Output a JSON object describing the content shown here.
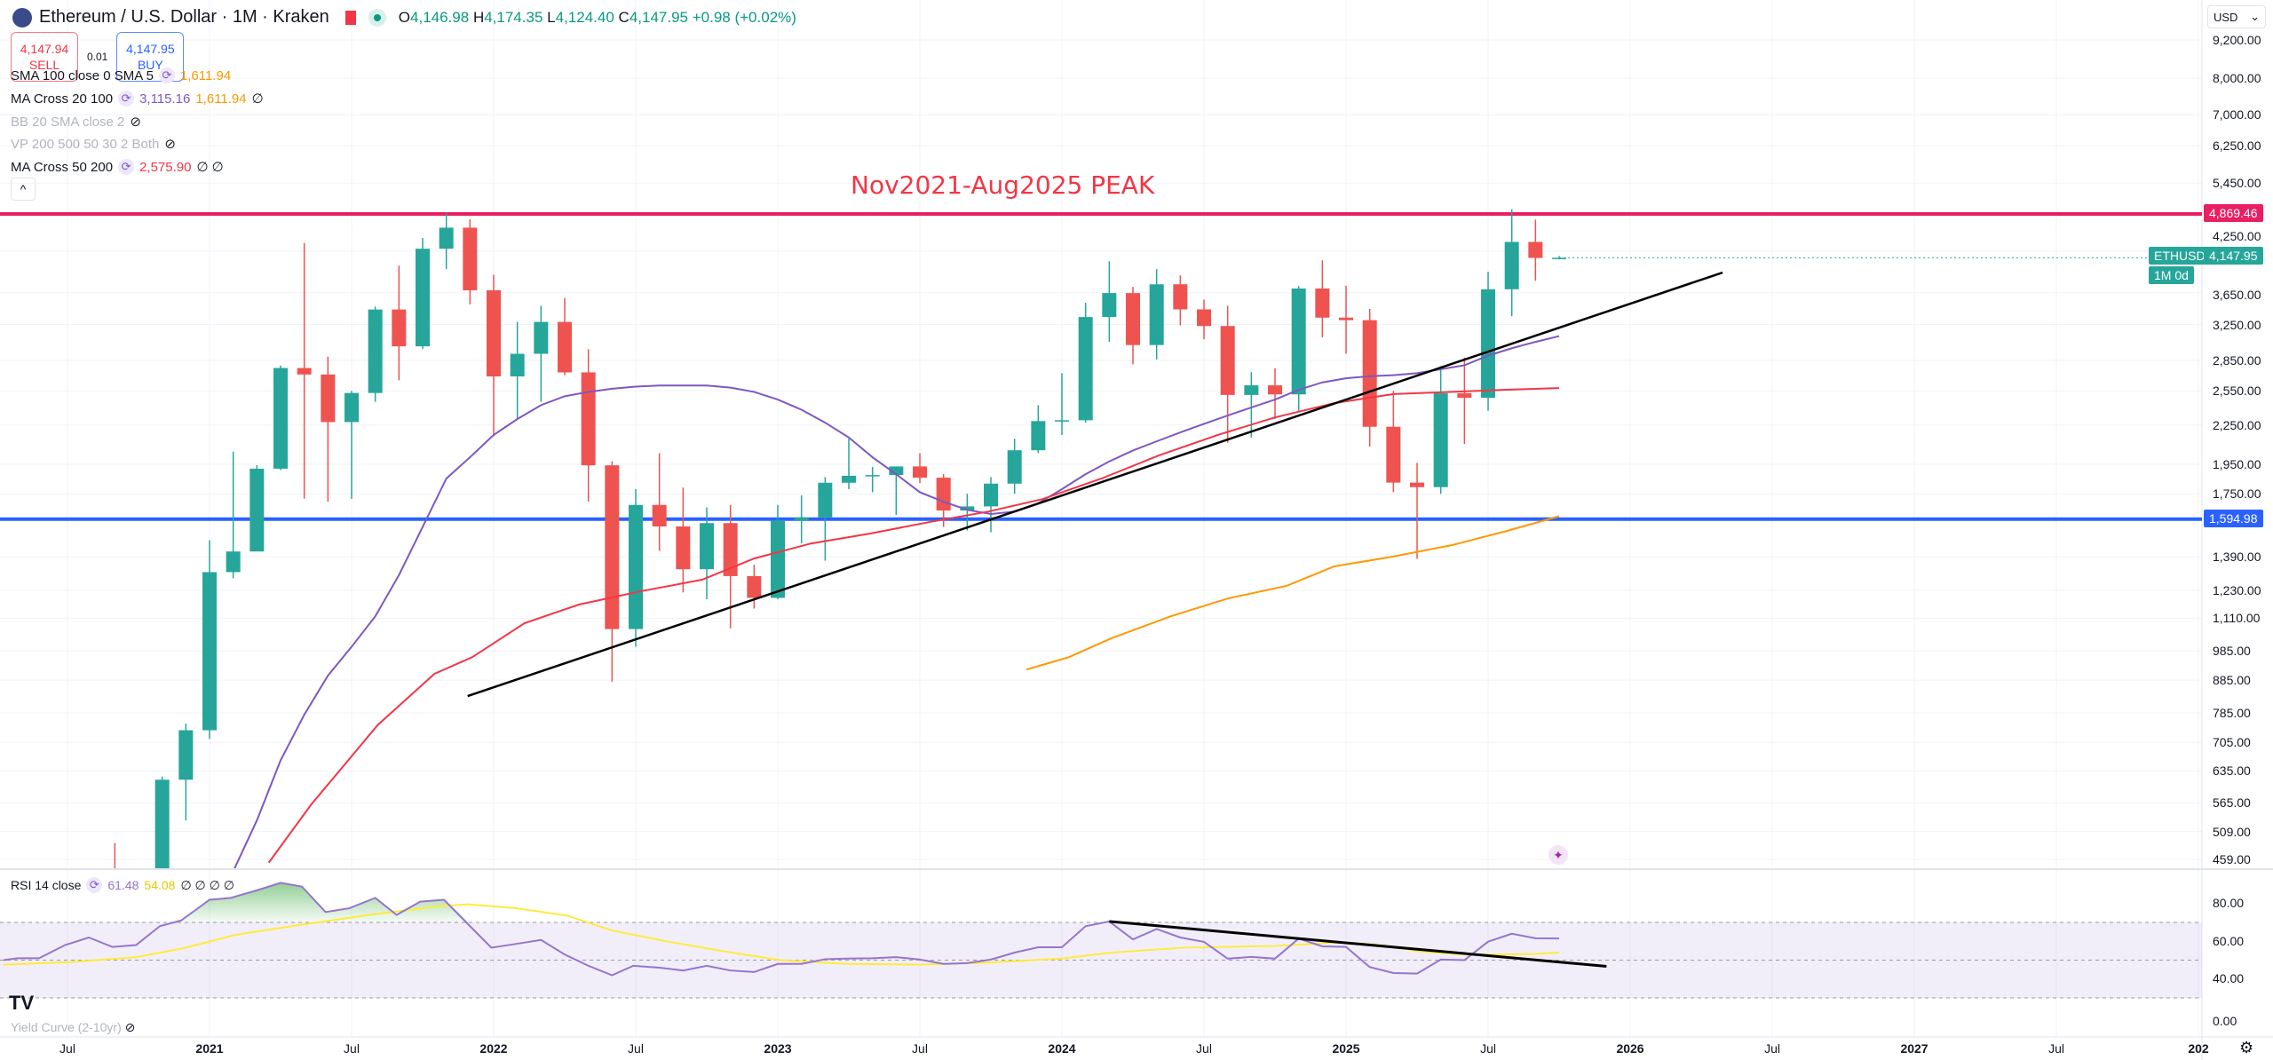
{
  "header": {
    "title": "Ethereum / U.S. Dollar · 1M · Kraken",
    "o_label": "O",
    "o": "4,146.98",
    "h_label": "H",
    "h": "4,174.35",
    "l_label": "L",
    "l": "4,124.40",
    "c_label": "C",
    "c": "4,147.95",
    "change": "+0.98 (+0.02%)"
  },
  "trade": {
    "sell_price": "4,147.94",
    "sell_label": "SELL",
    "spread": "0.01",
    "buy_price": "4,147.95",
    "buy_label": "BUY"
  },
  "indicators": [
    {
      "name": "SMA 100 close 0 SMA 5",
      "v1": "1,611.94",
      "v2": "",
      "extra": ""
    },
    {
      "name": "MA Cross 20 100",
      "v1": "3,115.16",
      "v2": "1,611.94",
      "extra": "∅"
    },
    {
      "name": "BB 20 SMA close 2",
      "v1": "",
      "v2": "",
      "extra": "⊘"
    },
    {
      "name": "VP 200 500 50 30 2 Both",
      "v1": "",
      "v2": "",
      "extra": "⊘"
    },
    {
      "name": "MA Cross 50 200",
      "v1": "2,575.90",
      "v2": "",
      "extra": "∅ ∅"
    }
  ],
  "rsi_header": {
    "name": "RSI 14 close",
    "rsi": "61.48",
    "signal": "54.08",
    "extra": "∅ ∅ ∅ ∅"
  },
  "yield_curve": "Yield Curve (2-10yr)",
  "currency": "USD",
  "symbol_tag": "ETHUSD",
  "price_tag": "4,147.95",
  "countdown": "1M 0d",
  "colors": {
    "up": "#26a69a",
    "down": "#ef5350",
    "ma20": "#7e57c2",
    "ma50": "#f23645",
    "sma100": "#ff9800",
    "rsi": "#9575cd",
    "rsi_signal": "#ffeb3b",
    "peak_line": "#e91e63",
    "support_line": "#2962ff"
  },
  "chart_data": {
    "type": "candlestick",
    "title": "Ethereum / U.S. Dollar · 1M · Kraken",
    "scale": "log",
    "annotation": "Nov2021-Aug2025 PEAK",
    "hlines": [
      {
        "price": 4869.46,
        "label": "4,869.46",
        "color": "#e91e63"
      },
      {
        "price": 1594.98,
        "label": "1,594.98",
        "color": "#2962ff"
      }
    ],
    "trendline": {
      "from_month": 10.9,
      "from_price": 835,
      "to_month": 63.9,
      "to_price": 3930
    },
    "month_index_origin": "2021-01",
    "price_ticks": [
      "9,200.00",
      "8,000.00",
      "7,000.00",
      "6,250.00",
      "5,450.00",
      "4,250.00",
      "3,650.00",
      "3,250.00",
      "2,850.00",
      "2,550.00",
      "2,250.00",
      "1,950.00",
      "1,750.00",
      "1,390.00",
      "1,230.00",
      "1,110.00",
      "985.00",
      "885.00",
      "785.00",
      "705.00",
      "635.00",
      "565.00",
      "509.00",
      "459.00"
    ],
    "time_ticks": [
      {
        "m": -6,
        "label": "Jul"
      },
      {
        "m": 0,
        "label": "2021"
      },
      {
        "m": 6,
        "label": "Jul"
      },
      {
        "m": 12,
        "label": "2022"
      },
      {
        "m": 18,
        "label": "Jul"
      },
      {
        "m": 24,
        "label": "2023"
      },
      {
        "m": 30,
        "label": "Jul"
      },
      {
        "m": 36,
        "label": "2024"
      },
      {
        "m": 42,
        "label": "Jul"
      },
      {
        "m": 48,
        "label": "2025"
      },
      {
        "m": 54,
        "label": "Jul"
      },
      {
        "m": 60,
        "label": "2026"
      },
      {
        "m": 66,
        "label": "Jul"
      },
      {
        "m": 72,
        "label": "2027"
      },
      {
        "m": 78,
        "label": "Jul"
      },
      {
        "m": 84,
        "label": "202"
      }
    ],
    "candles": [
      [
        -4,
        434,
        488,
        308,
        360
      ],
      [
        -3,
        360,
        415,
        335,
        386
      ],
      [
        -2,
        386,
        622,
        373,
        615
      ],
      [
        -1,
        615,
        755,
        530,
        737
      ],
      [
        0,
        737,
        1476,
        714,
        1314
      ],
      [
        1,
        1314,
        2041,
        1285,
        1417
      ],
      [
        2,
        1417,
        1943,
        1460,
        1918
      ],
      [
        3,
        1918,
        2797,
        1908,
        2772
      ],
      [
        4,
        2772,
        4380,
        1719,
        2707
      ],
      [
        5,
        2707,
        2890,
        1700,
        2275
      ],
      [
        6,
        2275,
        2550,
        1718,
        2530
      ],
      [
        7,
        2530,
        3470,
        2450,
        3433
      ],
      [
        8,
        3433,
        4030,
        2650,
        3001
      ],
      [
        9,
        3001,
        4460,
        2970,
        4288
      ],
      [
        10,
        4288,
        4891,
        3980,
        4631
      ],
      [
        11,
        4631,
        4778,
        3500,
        3683
      ],
      [
        12,
        3683,
        3900,
        2160,
        2688
      ],
      [
        13,
        2688,
        3280,
        2300,
        2920
      ],
      [
        14,
        2920,
        3480,
        2450,
        3281
      ],
      [
        15,
        3281,
        3580,
        2700,
        2728
      ],
      [
        16,
        2728,
        2970,
        1700,
        1942
      ],
      [
        17,
        1942,
        1970,
        880,
        1067
      ],
      [
        18,
        1067,
        1780,
        1000,
        1680
      ],
      [
        19,
        1680,
        2030,
        1420,
        1553
      ],
      [
        20,
        1553,
        1790,
        1220,
        1328
      ],
      [
        21,
        1328,
        1665,
        1190,
        1572
      ],
      [
        22,
        1572,
        1680,
        1070,
        1295
      ],
      [
        23,
        1295,
        1350,
        1150,
        1196
      ],
      [
        24,
        1196,
        1680,
        1190,
        1585
      ],
      [
        25,
        1585,
        1740,
        1460,
        1605
      ],
      [
        26,
        1605,
        1860,
        1370,
        1822
      ],
      [
        27,
        1822,
        2140,
        1780,
        1869
      ],
      [
        28,
        1869,
        1930,
        1760,
        1874
      ],
      [
        29,
        1874,
        1930,
        1620,
        1934
      ],
      [
        30,
        1934,
        2030,
        1820,
        1856
      ],
      [
        31,
        1856,
        1880,
        1550,
        1646
      ],
      [
        32,
        1646,
        1750,
        1530,
        1671
      ],
      [
        33,
        1671,
        1860,
        1520,
        1816
      ],
      [
        34,
        1816,
        2140,
        1750,
        2052
      ],
      [
        35,
        2052,
        2420,
        2030,
        2283
      ],
      [
        36,
        2283,
        2720,
        2170,
        2290
      ],
      [
        37,
        2290,
        3520,
        2270,
        3340
      ],
      [
        38,
        3340,
        4095,
        3050,
        3646
      ],
      [
        39,
        3646,
        3730,
        2810,
        3015
      ],
      [
        40,
        3015,
        3980,
        2860,
        3765
      ],
      [
        41,
        3765,
        3890,
        3240,
        3435
      ],
      [
        42,
        3435,
        3560,
        3080,
        3232
      ],
      [
        43,
        3232,
        3480,
        2110,
        2512
      ],
      [
        44,
        2512,
        2730,
        2150,
        2602
      ],
      [
        45,
        2602,
        2770,
        2300,
        2517
      ],
      [
        46,
        2517,
        3740,
        2360,
        3707
      ],
      [
        47,
        3707,
        4110,
        3100,
        3333
      ],
      [
        48,
        3333,
        3745,
        2920,
        3302
      ],
      [
        49,
        3302,
        3440,
        2080,
        2236
      ],
      [
        50,
        2236,
        2550,
        1760,
        1823
      ],
      [
        51,
        1823,
        1960,
        1380,
        1793
      ],
      [
        52,
        1793,
        2790,
        1750,
        2528
      ],
      [
        53,
        2528,
        2880,
        2100,
        2486
      ],
      [
        54,
        2486,
        3940,
        2370,
        3697
      ],
      [
        55,
        3697,
        4956,
        3350,
        4396
      ],
      [
        56,
        4396,
        4770,
        3815,
        4146
      ],
      [
        57,
        4146.98,
        4174.35,
        4124.4,
        4147.95
      ]
    ],
    "ma20": [
      [
        1,
        440
      ],
      [
        2,
        530
      ],
      [
        3,
        660
      ],
      [
        4,
        780
      ],
      [
        5,
        900
      ],
      [
        6,
        1000
      ],
      [
        7,
        1118
      ],
      [
        8,
        1300
      ],
      [
        9,
        1550
      ],
      [
        10,
        1850
      ],
      [
        11,
        2000
      ],
      [
        12,
        2170
      ],
      [
        13,
        2300
      ],
      [
        14,
        2420
      ],
      [
        15,
        2500
      ],
      [
        16,
        2540
      ],
      [
        17,
        2570
      ],
      [
        18,
        2590
      ],
      [
        19,
        2600
      ],
      [
        20,
        2600
      ],
      [
        21,
        2600
      ],
      [
        22,
        2580
      ],
      [
        23,
        2540
      ],
      [
        24,
        2470
      ],
      [
        25,
        2380
      ],
      [
        26,
        2270
      ],
      [
        27,
        2150
      ],
      [
        28,
        2000
      ],
      [
        29,
        1880
      ],
      [
        30,
        1760
      ],
      [
        31,
        1700
      ],
      [
        32,
        1650
      ],
      [
        33,
        1625
      ],
      [
        34,
        1640
      ],
      [
        35,
        1690
      ],
      [
        36,
        1780
      ],
      [
        37,
        1880
      ],
      [
        38,
        1970
      ],
      [
        39,
        2050
      ],
      [
        40,
        2120
      ],
      [
        41,
        2190
      ],
      [
        42,
        2260
      ],
      [
        43,
        2330
      ],
      [
        44,
        2400
      ],
      [
        45,
        2470
      ],
      [
        46,
        2560
      ],
      [
        47,
        2630
      ],
      [
        48,
        2670
      ],
      [
        49,
        2690
      ],
      [
        50,
        2700
      ],
      [
        51,
        2720
      ],
      [
        52,
        2760
      ],
      [
        53,
        2800
      ],
      [
        54,
        2900
      ],
      [
        55,
        2980
      ],
      [
        56,
        3050
      ],
      [
        57,
        3115.16
      ]
    ],
    "ma50": [
      [
        2.5,
        454
      ],
      [
        4.3,
        562
      ],
      [
        7.1,
        751
      ],
      [
        9.5,
        906
      ],
      [
        11.1,
        963
      ],
      [
        13.3,
        1090
      ],
      [
        15.6,
        1167
      ],
      [
        18.2,
        1225
      ],
      [
        20.8,
        1278
      ],
      [
        23,
        1381
      ],
      [
        25.4,
        1459
      ],
      [
        27.9,
        1513
      ],
      [
        30.4,
        1578
      ],
      [
        32.9,
        1640
      ],
      [
        35.2,
        1717
      ],
      [
        37.7,
        1852
      ],
      [
        40.1,
        2014
      ],
      [
        42.6,
        2171
      ],
      [
        45,
        2314
      ],
      [
        47.5,
        2438
      ],
      [
        50,
        2520
      ],
      [
        52.5,
        2541
      ],
      [
        54.8,
        2560
      ],
      [
        57,
        2575.9
      ]
    ],
    "sma100": [
      [
        34.5,
        920
      ],
      [
        36.3,
        963
      ],
      [
        38.1,
        1032
      ],
      [
        40.6,
        1118
      ],
      [
        43,
        1193
      ],
      [
        45.5,
        1250
      ],
      [
        47.5,
        1342
      ],
      [
        50,
        1391
      ],
      [
        52.5,
        1451
      ],
      [
        54.8,
        1528
      ],
      [
        57,
        1611.94
      ]
    ],
    "rsi": {
      "ticks": [
        "80.00",
        "60.00",
        "40.00",
        "0.00"
      ],
      "bands": [
        70,
        50,
        30
      ],
      "values": [
        [
          -8.7,
          50
        ],
        [
          -8.1,
          51
        ],
        [
          -7.2,
          51
        ],
        [
          -6.1,
          58
        ],
        [
          -5.1,
          62
        ],
        [
          -4.1,
          57
        ],
        [
          -3.1,
          58
        ],
        [
          -2.1,
          68
        ],
        [
          -1.2,
          71
        ],
        [
          0,
          82
        ],
        [
          0.9,
          83
        ],
        [
          2,
          87
        ],
        [
          3,
          91
        ],
        [
          3.9,
          89
        ],
        [
          4.9,
          75.5
        ],
        [
          5.9,
          77.5
        ],
        [
          7,
          83
        ],
        [
          7.9,
          74
        ],
        [
          8.9,
          81
        ],
        [
          9.9,
          82
        ],
        [
          11,
          68
        ],
        [
          11.9,
          56.6
        ],
        [
          12.9,
          58.5
        ],
        [
          14,
          60.7
        ],
        [
          15,
          53
        ],
        [
          16,
          47
        ],
        [
          17,
          42
        ],
        [
          17.9,
          47
        ],
        [
          19,
          46
        ],
        [
          20,
          44.5
        ],
        [
          21,
          47
        ],
        [
          22,
          44.5
        ],
        [
          23,
          43.7
        ],
        [
          24,
          48
        ],
        [
          25,
          48
        ],
        [
          26,
          50.5
        ],
        [
          26.9,
          50.8
        ],
        [
          28,
          51
        ],
        [
          29,
          51.6
        ],
        [
          30,
          50.3
        ],
        [
          31,
          48
        ],
        [
          32,
          48.4
        ],
        [
          33,
          50.3
        ],
        [
          34,
          54
        ],
        [
          35,
          56.8
        ],
        [
          36,
          56.8
        ],
        [
          37,
          68
        ],
        [
          38,
          70.5
        ],
        [
          39,
          61
        ],
        [
          40,
          66.5
        ],
        [
          41,
          62
        ],
        [
          42,
          59.7
        ],
        [
          43,
          50.8
        ],
        [
          44,
          51.7
        ],
        [
          45,
          50.8
        ],
        [
          46,
          61.4
        ],
        [
          47,
          57.3
        ],
        [
          48,
          57
        ],
        [
          49,
          46.3
        ],
        [
          50,
          43.2
        ],
        [
          51,
          42.9
        ],
        [
          52,
          50.3
        ],
        [
          53,
          50
        ],
        [
          54,
          59.8
        ],
        [
          55,
          64
        ],
        [
          56,
          61.6
        ],
        [
          57,
          61.48
        ]
      ],
      "signal": [
        [
          -8.7,
          47.6
        ],
        [
          -5.8,
          49
        ],
        [
          -3.1,
          51.6
        ],
        [
          -1.1,
          56.3
        ],
        [
          1.1,
          63.4
        ],
        [
          4,
          69
        ],
        [
          7,
          74.4
        ],
        [
          9.8,
          78.7
        ],
        [
          10.9,
          79.6
        ],
        [
          12.9,
          77.6
        ],
        [
          15.1,
          73.6
        ],
        [
          17,
          65.7
        ],
        [
          19.2,
          60.2
        ],
        [
          21.7,
          54.7
        ],
        [
          24.1,
          50
        ],
        [
          26.9,
          48
        ],
        [
          30,
          47.6
        ],
        [
          32.9,
          48.7
        ],
        [
          36,
          50.8
        ],
        [
          38.1,
          54
        ],
        [
          41,
          56.5
        ],
        [
          42.8,
          57
        ],
        [
          45,
          57.5
        ],
        [
          47,
          58.9
        ],
        [
          48,
          59.4
        ],
        [
          49.6,
          57.8
        ],
        [
          51.1,
          54.6
        ],
        [
          53,
          53
        ],
        [
          54.8,
          53
        ],
        [
          56,
          53.3
        ],
        [
          57,
          54.08
        ]
      ],
      "trendline": {
        "from_month": 38,
        "from_value": 70.5,
        "to_month": 59,
        "to_value": 46.7
      }
    }
  }
}
